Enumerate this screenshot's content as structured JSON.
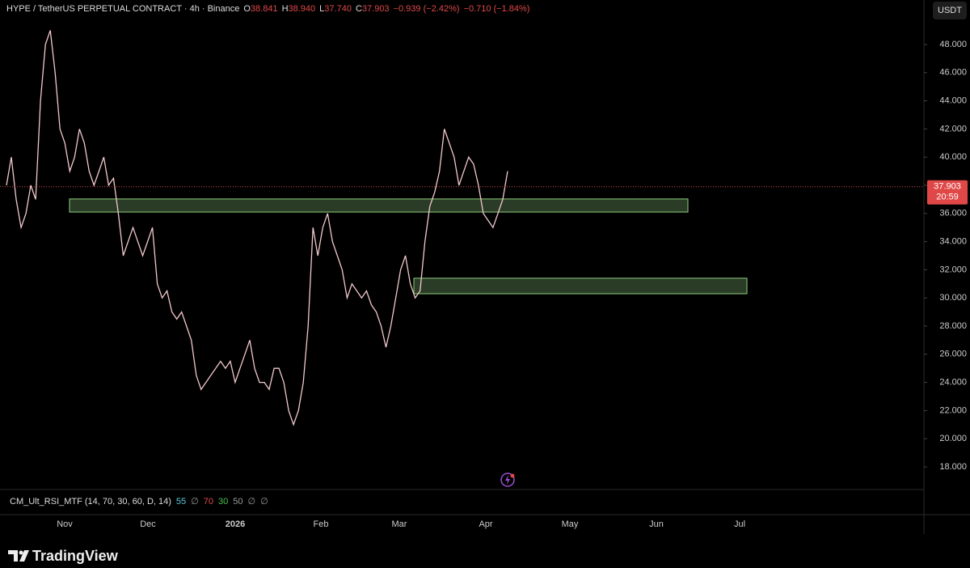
{
  "chart_data": {
    "type": "line",
    "title": "HYPE / TetherUS PERPETUAL CONTRACT · 4h · Binance",
    "ohlc": [
      {
        "label": "O",
        "value": "38.841"
      },
      {
        "label": "H",
        "value": "38.940"
      },
      {
        "label": "L",
        "value": "37.740"
      },
      {
        "label": "C",
        "value": "37.903"
      }
    ],
    "change": "−0.939 (−2.42%)",
    "change2": "−0.710 (−1.84%)",
    "currency": "USDT",
    "series": [
      {
        "name": "HYPE",
        "color": "#f3c9cc",
        "values": [
          38,
          40,
          37,
          35,
          36,
          38,
          37,
          44,
          48,
          49,
          46,
          42,
          41,
          39,
          40,
          42,
          41,
          39,
          38,
          39,
          40,
          38,
          38.5,
          36,
          33,
          34,
          35,
          34,
          33,
          34,
          35,
          31,
          30,
          30.5,
          29,
          28.5,
          29,
          28,
          27,
          24.5,
          23.5,
          24,
          24.5,
          25,
          25.5,
          25,
          25.5,
          24,
          25,
          26,
          27,
          25,
          24,
          24,
          23.5,
          25,
          25,
          24,
          22,
          21,
          22,
          24,
          28,
          35,
          33,
          35,
          36,
          34,
          33,
          32,
          30,
          31,
          30.5,
          30,
          30.5,
          29.5,
          29,
          28,
          26.5,
          28,
          30,
          32,
          33,
          31,
          30,
          30.5,
          34,
          36.5,
          37.5,
          39,
          42,
          41,
          40,
          38,
          39,
          40,
          39.5,
          38,
          36,
          35.5,
          35,
          36,
          37,
          39
        ]
      }
    ],
    "zones": [
      {
        "low": 36.1,
        "high": 37.03
      },
      {
        "low": 30.3,
        "high": 31.4
      }
    ],
    "current_price": {
      "value": 37.903,
      "label": "37.903",
      "countdown": "20:59"
    },
    "ylim": [
      16.45,
      51.16
    ],
    "yticks": [
      {
        "value": 18,
        "label": "18.000"
      },
      {
        "value": 20,
        "label": "20.000"
      },
      {
        "value": 22,
        "label": "22.000"
      },
      {
        "value": 24,
        "label": "24.000"
      },
      {
        "value": 26,
        "label": "26.000"
      },
      {
        "value": 28,
        "label": "28.000"
      },
      {
        "value": 30,
        "label": "30.000"
      },
      {
        "value": 32,
        "label": "32.000"
      },
      {
        "value": 34,
        "label": "34.000"
      },
      {
        "value": 36,
        "label": "36.000"
      },
      {
        "value": 38,
        "label": "38.000"
      },
      {
        "value": 40,
        "label": "40.000"
      },
      {
        "value": 42,
        "label": "42.000"
      },
      {
        "value": 44,
        "label": "44.000"
      },
      {
        "value": 46,
        "label": "46.000"
      },
      {
        "value": 48,
        "label": "48.000"
      }
    ],
    "xticks": [
      "Nov",
      "Dec",
      "2026",
      "Feb",
      "Mar",
      "Apr",
      "May",
      "Jun",
      "Jul"
    ],
    "indicator": {
      "name": "CM_Ult_RSI_MTF (14, 70, 30, 60, D, 14)",
      "values": [
        {
          "text": "55",
          "color": "#5ec8d8"
        },
        {
          "text": "∅",
          "color": "#9a9a9a"
        },
        {
          "text": "70",
          "color": "#e04848"
        },
        {
          "text": "30",
          "color": "#4cc24c"
        },
        {
          "text": "50",
          "color": "#9a9a9a"
        },
        {
          "text": "∅",
          "color": "#9a9a9a"
        },
        {
          "text": "∅",
          "color": "#9a9a9a"
        }
      ]
    },
    "brand": "TradingView"
  }
}
